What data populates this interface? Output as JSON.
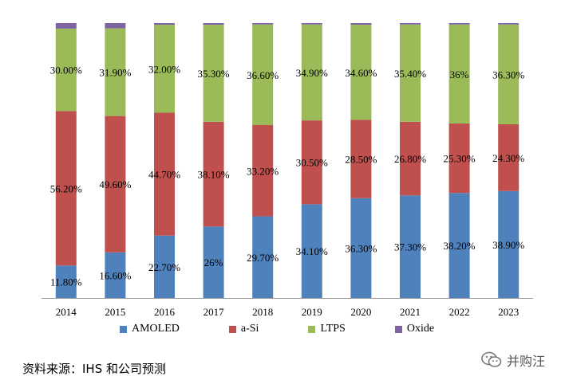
{
  "chart_data": {
    "type": "bar",
    "stacked": true,
    "categories": [
      "2014",
      "2015",
      "2016",
      "2017",
      "2018",
      "2019",
      "2020",
      "2021",
      "2022",
      "2023"
    ],
    "series": [
      {
        "name": "AMOLED",
        "color": "#4F81BD",
        "values": [
          11.8,
          16.6,
          22.7,
          26,
          29.7,
          34.1,
          36.3,
          37.3,
          38.2,
          38.9
        ],
        "labels": [
          "11.80%",
          "16.60%",
          "22.70%",
          "26%",
          "29.70%",
          "34.10%",
          "36.30%",
          "37.30%",
          "38.20%",
          "38.90%"
        ]
      },
      {
        "name": "a-Si",
        "color": "#C0504D",
        "values": [
          56.2,
          49.6,
          44.7,
          38.1,
          33.2,
          30.5,
          28.5,
          26.8,
          25.3,
          24.3
        ],
        "labels": [
          "56.20%",
          "49.60%",
          "44.70%",
          "38.10%",
          "33.20%",
          "30.50%",
          "28.50%",
          "26.80%",
          "25.30%",
          "24.30%"
        ]
      },
      {
        "name": "LTPS",
        "color": "#9BBB59",
        "values": [
          30,
          31.9,
          32,
          35.3,
          36.6,
          34.9,
          34.6,
          35.4,
          36,
          36.3
        ],
        "labels": [
          "30.00%",
          "31.90%",
          "32.00%",
          "35.30%",
          "36.60%",
          "34.90%",
          "34.60%",
          "35.40%",
          "36%",
          "36.30%"
        ]
      },
      {
        "name": "Oxide",
        "color": "#8064A2",
        "values": [
          2,
          1.9,
          0.6,
          0.6,
          0.5,
          0.5,
          0.6,
          0.5,
          0.5,
          0.5
        ],
        "labels": []
      }
    ],
    "ylim": [
      0,
      100
    ],
    "legend_position": "bottom",
    "grid": false
  },
  "source_text": "资料来源：IHS 和公司预测",
  "watermark_text": "并购汪"
}
